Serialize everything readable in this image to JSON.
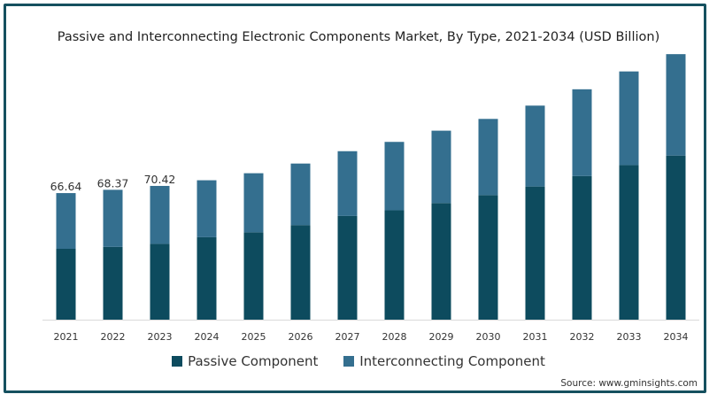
{
  "title": "Passive and Interconnecting Electronic Components Market, By Type, 2021-2034 (USD Billion)",
  "source": "Source: www.gminsights.com",
  "colors": {
    "passive": "#0d4b5e",
    "interconnecting": "#346f8f",
    "frame": "#15505f"
  },
  "chart_data": {
    "type": "bar",
    "stacked": true,
    "title": "Passive and Interconnecting Electronic Components Market, By Type, 2021-2034 (USD Billion)",
    "categories": [
      "2021",
      "2022",
      "2023",
      "2024",
      "2025",
      "2026",
      "2027",
      "2028",
      "2029",
      "2030",
      "2031",
      "2032",
      "2033",
      "2034"
    ],
    "series": [
      {
        "name": "Passive Component",
        "values": [
          37.3,
          38.3,
          39.9,
          43.4,
          46.0,
          49.8,
          54.6,
          57.6,
          61.4,
          65.6,
          70.1,
          75.6,
          81.4,
          86.4
        ]
      },
      {
        "name": "Interconnecting Component",
        "values": [
          29.34,
          30.07,
          30.52,
          30.0,
          31.1,
          32.4,
          34.1,
          36.0,
          38.1,
          40.1,
          42.6,
          45.7,
          49.3,
          53.4
        ]
      }
    ],
    "data_labels": [
      "66.64",
      "68.37",
      "70.42"
    ],
    "ylim": [
      0,
      145
    ],
    "grid": false,
    "legend": "bottom"
  }
}
